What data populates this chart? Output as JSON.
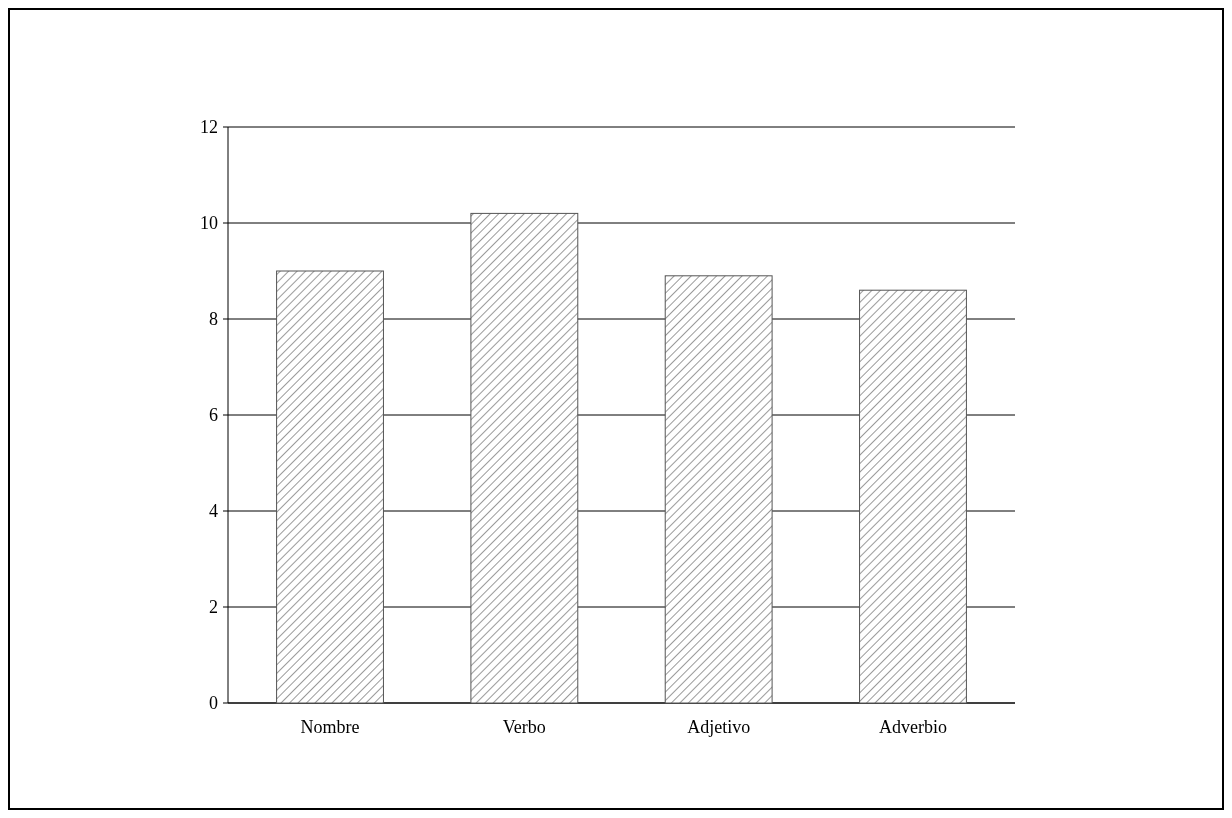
{
  "chart_data": {
    "type": "bar",
    "categories": [
      "Nombre",
      "Verbo",
      "Adjetivo",
      "Adverbio"
    ],
    "values": [
      9.0,
      10.2,
      8.9,
      8.6
    ],
    "color": "#555555",
    "ylim": [
      0,
      12
    ],
    "yticks": [
      0,
      2,
      4,
      6,
      8,
      10,
      12
    ],
    "grid": "y"
  }
}
